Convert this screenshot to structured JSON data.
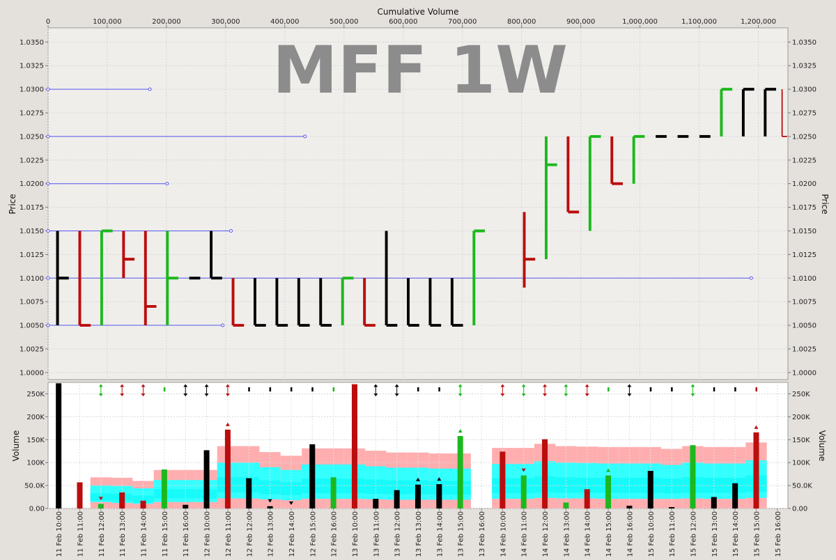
{
  "chart_data": [
    {
      "type": "line",
      "title": "MFF 1W",
      "top_axis_label": "Cumulative Volume",
      "ylabel": "Price",
      "xlim": [
        0,
        1250000
      ],
      "ylim": [
        0.99925,
        1.0365
      ],
      "x_ticks": [
        0,
        100000,
        200000,
        300000,
        400000,
        500000,
        600000,
        700000,
        800000,
        900000,
        1000000,
        1100000,
        1200000
      ],
      "x_tick_labels": [
        "0",
        "100,000",
        "200,000",
        "300,000",
        "400,000",
        "500,000",
        "600,000",
        "700,000",
        "800,000",
        "900,000",
        "1,000,000",
        "1,100,000",
        "1,200,000"
      ],
      "y_ticks": [
        1.0,
        1.0025,
        1.005,
        1.0075,
        1.01,
        1.0125,
        1.015,
        1.0175,
        1.02,
        1.0225,
        1.025,
        1.0275,
        1.03,
        1.0325,
        1.035
      ],
      "y_tick_labels": [
        "1.0000",
        "1.0025",
        "1.0050",
        "1.0075",
        "1.0100",
        "1.0125",
        "1.0150",
        "1.0175",
        "1.0200",
        "1.0225",
        "1.0250",
        "1.0275",
        "1.0300",
        "1.0325",
        "1.0350"
      ],
      "grid": true,
      "colors": {
        "up": "#1db81d",
        "down": "#bb0d0d",
        "flat": "#000000",
        "level": "#5555ee"
      },
      "price_levels": [
        {
          "price": 1.03,
          "end_volume": 172000
        },
        {
          "price": 1.025,
          "end_volume": 434000
        },
        {
          "price": 1.02,
          "end_volume": 201000
        },
        {
          "price": 1.015,
          "end_volume": 309000
        },
        {
          "price": 1.01,
          "end_volume": 1188000
        },
        {
          "price": 1.005,
          "end_volume": 295000
        }
      ],
      "bars": [
        {
          "x_start": 0,
          "x_end": 38000,
          "high": 1.015,
          "low": 1.005,
          "close": 1.01,
          "direction": "flat"
        },
        {
          "x_start": 38000,
          "x_end": 75000,
          "high": 1.015,
          "low": 1.005,
          "close": 1.005,
          "direction": "down"
        },
        {
          "x_start": 75000,
          "x_end": 112000,
          "high": 1.015,
          "low": 1.005,
          "close": 1.015,
          "direction": "up"
        },
        {
          "x_start": 112000,
          "x_end": 149000,
          "high": 1.015,
          "low": 1.01,
          "close": 1.012,
          "direction": "down"
        },
        {
          "x_start": 149000,
          "x_end": 186000,
          "high": 1.015,
          "low": 1.005,
          "close": 1.007,
          "direction": "down"
        },
        {
          "x_start": 186000,
          "x_end": 223000,
          "high": 1.015,
          "low": 1.005,
          "close": 1.01,
          "direction": "up"
        },
        {
          "x_start": 223000,
          "x_end": 260000,
          "high": 1.01,
          "low": 1.01,
          "close": 1.01,
          "direction": "flat"
        },
        {
          "x_start": 260000,
          "x_end": 297000,
          "high": 1.015,
          "low": 1.01,
          "close": 1.01,
          "direction": "flat"
        },
        {
          "x_start": 297000,
          "x_end": 334000,
          "high": 1.01,
          "low": 1.005,
          "close": 1.005,
          "direction": "down"
        },
        {
          "x_start": 334000,
          "x_end": 371000,
          "high": 1.01,
          "low": 1.005,
          "close": 1.005,
          "direction": "flat"
        },
        {
          "x_start": 371000,
          "x_end": 408000,
          "high": 1.01,
          "low": 1.005,
          "close": 1.005,
          "direction": "flat"
        },
        {
          "x_start": 408000,
          "x_end": 445000,
          "high": 1.01,
          "low": 1.005,
          "close": 1.005,
          "direction": "flat"
        },
        {
          "x_start": 445000,
          "x_end": 482000,
          "high": 1.01,
          "low": 1.005,
          "close": 1.005,
          "direction": "flat"
        },
        {
          "x_start": 482000,
          "x_end": 519000,
          "high": 1.01,
          "low": 1.005,
          "close": 1.01,
          "direction": "up"
        },
        {
          "x_start": 519000,
          "x_end": 556000,
          "high": 1.01,
          "low": 1.005,
          "close": 1.005,
          "direction": "down"
        },
        {
          "x_start": 556000,
          "x_end": 593000,
          "high": 1.015,
          "low": 1.005,
          "close": 1.005,
          "direction": "flat"
        },
        {
          "x_start": 593000,
          "x_end": 630000,
          "high": 1.01,
          "low": 1.005,
          "close": 1.005,
          "direction": "flat"
        },
        {
          "x_start": 630000,
          "x_end": 667000,
          "high": 1.01,
          "low": 1.005,
          "close": 1.005,
          "direction": "flat"
        },
        {
          "x_start": 667000,
          "x_end": 704000,
          "high": 1.01,
          "low": 1.005,
          "close": 1.005,
          "direction": "flat"
        },
        {
          "x_start": 704000,
          "x_end": 741000,
          "high": 1.015,
          "low": 1.005,
          "close": 1.015,
          "direction": "up"
        },
        {
          "x_start": 789000,
          "x_end": 826000,
          "high": 1.017,
          "low": 1.009,
          "close": 1.012,
          "direction": "down"
        },
        {
          "x_start": 826000,
          "x_end": 863000,
          "high": 1.025,
          "low": 1.012,
          "close": 1.022,
          "direction": "up"
        },
        {
          "x_start": 863000,
          "x_end": 900000,
          "high": 1.025,
          "low": 1.017,
          "close": 1.017,
          "direction": "down"
        },
        {
          "x_start": 900000,
          "x_end": 937000,
          "high": 1.025,
          "low": 1.015,
          "close": 1.025,
          "direction": "up"
        },
        {
          "x_start": 937000,
          "x_end": 974000,
          "high": 1.025,
          "low": 1.02,
          "close": 1.02,
          "direction": "down"
        },
        {
          "x_start": 974000,
          "x_end": 1011000,
          "high": 1.025,
          "low": 1.02,
          "close": 1.025,
          "direction": "up"
        },
        {
          "x_start": 1011000,
          "x_end": 1048000,
          "high": 1.025,
          "low": 1.025,
          "close": 1.025,
          "direction": "flat"
        },
        {
          "x_start": 1048000,
          "x_end": 1085000,
          "high": 1.025,
          "low": 1.025,
          "close": 1.025,
          "direction": "flat"
        },
        {
          "x_start": 1085000,
          "x_end": 1122000,
          "high": 1.025,
          "low": 1.025,
          "close": 1.025,
          "direction": "flat"
        },
        {
          "x_start": 1122000,
          "x_end": 1159000,
          "high": 1.03,
          "low": 1.025,
          "close": 1.03,
          "direction": "up"
        },
        {
          "x_start": 1159000,
          "x_end": 1196000,
          "high": 1.03,
          "low": 1.025,
          "close": 1.03,
          "direction": "flat"
        },
        {
          "x_start": 1196000,
          "x_end": 1233000,
          "high": 1.03,
          "low": 1.025,
          "close": 1.03,
          "direction": "flat"
        },
        {
          "x_start": 1233000,
          "x_end": 1250000,
          "high": 1.03,
          "low": 1.025,
          "close": 1.025,
          "direction": "down"
        }
      ]
    },
    {
      "type": "bar",
      "ylabel": "Volume",
      "ylim": [
        0,
        275000
      ],
      "y_ticks": [
        0,
        50000,
        100000,
        150000,
        200000,
        250000
      ],
      "y_tick_labels": [
        "0.00",
        "50.0K",
        "100K",
        "150K",
        "200K",
        "250K"
      ],
      "grid": true,
      "band_colors": {
        "outer": "#ffaeb0",
        "inner": "#33ffff"
      },
      "categories": [
        "11 Feb 10:00",
        "11 Feb 11:00",
        "11 Feb 12:00",
        "11 Feb 13:00",
        "11 Feb 14:00",
        "11 Feb 15:00",
        "11 Feb 16:00",
        "12 Feb 10:00",
        "12 Feb 11:00",
        "12 Feb 12:00",
        "12 Feb 13:00",
        "12 Feb 14:00",
        "12 Feb 15:00",
        "12 Feb 16:00",
        "13 Feb 10:00",
        "13 Feb 11:00",
        "13 Feb 12:00",
        "13 Feb 13:00",
        "13 Feb 14:00",
        "13 Feb 15:00",
        "13 Feb 16:00",
        "14 Feb 10:00",
        "14 Feb 11:00",
        "14 Feb 12:00",
        "14 Feb 13:00",
        "14 Feb 14:00",
        "14 Feb 15:00",
        "14 Feb 16:00",
        "15 Feb 10:00",
        "15 Feb 11:00",
        "15 Feb 12:00",
        "15 Feb 13:00",
        "15 Feb 14:00",
        "15 Feb 15:00",
        "15 Feb 16:00"
      ],
      "bars": [
        {
          "slot": 0,
          "value": 273000,
          "direction": "flat",
          "marker": "none",
          "band": null
        },
        {
          "slot": 1,
          "value": 57000,
          "direction": "down",
          "marker": "none",
          "band": null
        },
        {
          "slot": 2,
          "value": 10000,
          "direction": "up",
          "marker": "down",
          "band": [
            0,
            68000,
            14000,
            50000,
            17000,
            33000
          ]
        },
        {
          "slot": 3,
          "value": 35000,
          "direction": "down",
          "marker": "updown",
          "band": [
            0,
            67000,
            12000,
            49000,
            17000,
            32000
          ]
        },
        {
          "slot": 4,
          "value": 17000,
          "direction": "down",
          "marker": "updown",
          "band": [
            0,
            60000,
            10000,
            44000,
            13000,
            28000
          ]
        },
        {
          "slot": 5,
          "value": 85000,
          "direction": "up",
          "marker": "flat",
          "band": [
            0,
            84000,
            14000,
            62000,
            22000,
            42000
          ]
        },
        {
          "slot": 6,
          "value": 8000,
          "direction": "flat",
          "marker": "updown",
          "band": [
            0,
            84000,
            14000,
            62000,
            22000,
            42000
          ]
        },
        {
          "slot": 7,
          "value": 127000,
          "direction": "flat",
          "marker": "updown",
          "band": [
            0,
            84000,
            14000,
            62000,
            22000,
            42000
          ]
        },
        {
          "slot": 8,
          "value": 172000,
          "direction": "down",
          "marker": "updown",
          "band": [
            0,
            136000,
            22000,
            100000,
            35000,
            68000
          ]
        },
        {
          "slot": 9,
          "value": 66000,
          "direction": "flat",
          "marker": "flat",
          "band": [
            0,
            136000,
            22000,
            100000,
            35000,
            68000
          ]
        },
        {
          "slot": 10,
          "value": 5000,
          "direction": "flat",
          "marker": "flat",
          "band": [
            0,
            123000,
            20000,
            90000,
            31000,
            61000
          ]
        },
        {
          "slot": 11,
          "value": 0,
          "direction": "flat",
          "marker": "flat",
          "band": [
            0,
            115000,
            18000,
            84000,
            29000,
            57000
          ]
        },
        {
          "slot": 12,
          "value": 140000,
          "direction": "flat",
          "marker": "flat",
          "band": [
            0,
            131000,
            21000,
            96000,
            33000,
            65000
          ]
        },
        {
          "slot": 13,
          "value": 68000,
          "direction": "up",
          "marker": "flat",
          "band": [
            0,
            131000,
            21000,
            96000,
            33000,
            65000
          ]
        },
        {
          "slot": 14,
          "value": 271000,
          "direction": "down",
          "marker": "flat",
          "band": [
            0,
            131000,
            21000,
            96000,
            33000,
            65000
          ]
        },
        {
          "slot": 15,
          "value": 21000,
          "direction": "flat",
          "marker": "updown",
          "band": [
            0,
            126000,
            20000,
            92000,
            32000,
            63000
          ]
        },
        {
          "slot": 16,
          "value": 40000,
          "direction": "flat",
          "marker": "updown",
          "band": [
            0,
            122000,
            19000,
            89000,
            31000,
            61000
          ]
        },
        {
          "slot": 17,
          "value": 52000,
          "direction": "flat",
          "marker": "flat",
          "band": [
            0,
            122000,
            19000,
            89000,
            31000,
            61000
          ]
        },
        {
          "slot": 18,
          "value": 53000,
          "direction": "flat",
          "marker": "flat",
          "band": [
            0,
            120000,
            19000,
            87000,
            30000,
            60000
          ]
        },
        {
          "slot": 19,
          "value": 158000,
          "direction": "up",
          "marker": "updown",
          "band": [
            0,
            120000,
            19000,
            87000,
            30000,
            60000
          ]
        },
        {
          "slot": 21,
          "value": 124000,
          "direction": "down",
          "marker": "updown",
          "band": [
            0,
            132000,
            21000,
            97000,
            33000,
            66000
          ]
        },
        {
          "slot": 22,
          "value": 72000,
          "direction": "up",
          "marker": "updown",
          "band": [
            0,
            132000,
            21000,
            97000,
            33000,
            66000
          ]
        },
        {
          "slot": 23,
          "value": 151000,
          "direction": "down",
          "marker": "updown",
          "band": [
            0,
            141000,
            23000,
            103000,
            35000,
            70000
          ]
        },
        {
          "slot": 24,
          "value": 13000,
          "direction": "up",
          "marker": "updown",
          "band": [
            0,
            136000,
            22000,
            100000,
            34000,
            68000
          ]
        },
        {
          "slot": 25,
          "value": 42000,
          "direction": "down",
          "marker": "updown",
          "band": [
            0,
            135000,
            22000,
            99000,
            34000,
            67000
          ]
        },
        {
          "slot": 26,
          "value": 72000,
          "direction": "up",
          "marker": "flat",
          "band": [
            0,
            134000,
            21000,
            98000,
            34000,
            67000
          ]
        },
        {
          "slot": 27,
          "value": 6000,
          "direction": "flat",
          "marker": "updown",
          "band": [
            0,
            134000,
            21000,
            98000,
            34000,
            67000
          ]
        },
        {
          "slot": 28,
          "value": 82000,
          "direction": "flat",
          "marker": "flat",
          "band": [
            0,
            134000,
            21000,
            98000,
            34000,
            67000
          ]
        },
        {
          "slot": 29,
          "value": 3000,
          "direction": "flat",
          "marker": "flat",
          "band": [
            0,
            130000,
            21000,
            95000,
            33000,
            65000
          ]
        },
        {
          "slot": 30,
          "value": 138000,
          "direction": "up",
          "marker": "updown",
          "band": [
            0,
            136000,
            22000,
            100000,
            34000,
            68000
          ]
        },
        {
          "slot": 31,
          "value": 25000,
          "direction": "flat",
          "marker": "flat",
          "band": [
            0,
            134000,
            21000,
            98000,
            34000,
            67000
          ]
        },
        {
          "slot": 32,
          "value": 55000,
          "direction": "flat",
          "marker": "flat",
          "band": [
            0,
            134000,
            21000,
            98000,
            34000,
            67000
          ]
        },
        {
          "slot": 33,
          "value": 166000,
          "direction": "down",
          "marker": "flat",
          "band": [
            0,
            144000,
            23000,
            105000,
            36000,
            72000
          ]
        }
      ],
      "bar_markers": [
        {
          "slot": 2,
          "shape": "down"
        },
        {
          "slot": 8,
          "shape": "up"
        },
        {
          "slot": 10,
          "shape": "down"
        },
        {
          "slot": 11,
          "shape": "down"
        },
        {
          "slot": 17,
          "shape": "up"
        },
        {
          "slot": 18,
          "shape": "up"
        },
        {
          "slot": 19,
          "shape": "up"
        },
        {
          "slot": 22,
          "shape": "down"
        },
        {
          "slot": 26,
          "shape": "up"
        },
        {
          "slot": 33,
          "shape": "up"
        }
      ]
    }
  ]
}
